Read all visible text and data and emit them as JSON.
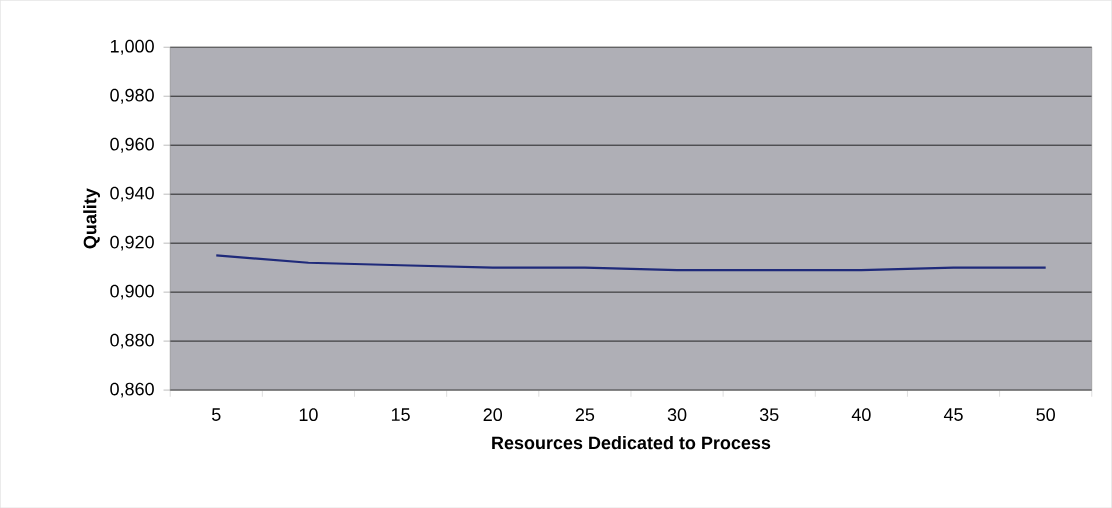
{
  "chart_data": {
    "type": "line",
    "xlabel": "Resources Dedicated to Process",
    "ylabel": "Quality",
    "categories": [
      "5",
      "10",
      "15",
      "20",
      "25",
      "30",
      "35",
      "40",
      "45",
      "50"
    ],
    "series": [
      {
        "color": "#1f2a7a",
        "values": [
          0.915,
          0.912,
          0.911,
          0.91,
          0.91,
          0.909,
          0.909,
          0.909,
          0.91,
          0.91
        ]
      }
    ],
    "ylim": [
      0.86,
      1.0
    ],
    "yticks": [
      {
        "value": 0.86,
        "label": "0,860"
      },
      {
        "value": 0.88,
        "label": "0,880"
      },
      {
        "value": 0.9,
        "label": "0,900"
      },
      {
        "value": 0.92,
        "label": "0,920"
      },
      {
        "value": 0.94,
        "label": "0,940"
      },
      {
        "value": 0.96,
        "label": "0,960"
      },
      {
        "value": 0.98,
        "label": "0,980"
      },
      {
        "value": 1.0,
        "label": "1,000"
      }
    ],
    "grid": "y",
    "marker": "none",
    "line_style": "solid"
  }
}
